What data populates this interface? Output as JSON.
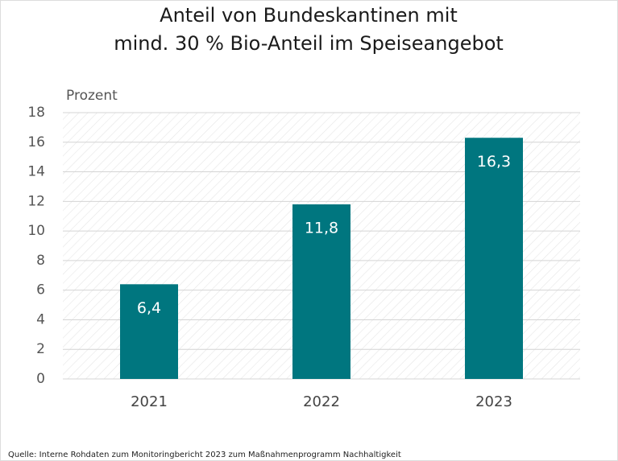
{
  "chart_data": {
    "type": "bar",
    "title": [
      "Anteil von Bundeskantinen mit",
      "mind. 30 % Bio-Anteil im Speiseangebot"
    ],
    "y_label": "Prozent",
    "categories": [
      "2021",
      "2022",
      "2023"
    ],
    "values": [
      6.4,
      11.8,
      16.3
    ],
    "value_labels": [
      "6,4",
      "11,8",
      "16,3"
    ],
    "color": "#00767f",
    "ylim": [
      0,
      18
    ],
    "yticks": [
      0,
      2,
      4,
      6,
      8,
      10,
      12,
      14,
      16,
      18
    ],
    "grid": true,
    "source": "Quelle: Interne Rohdaten zum Monitoringbericht 2023 zum Maßnahmenprogramm Nachhaltigkeit"
  }
}
